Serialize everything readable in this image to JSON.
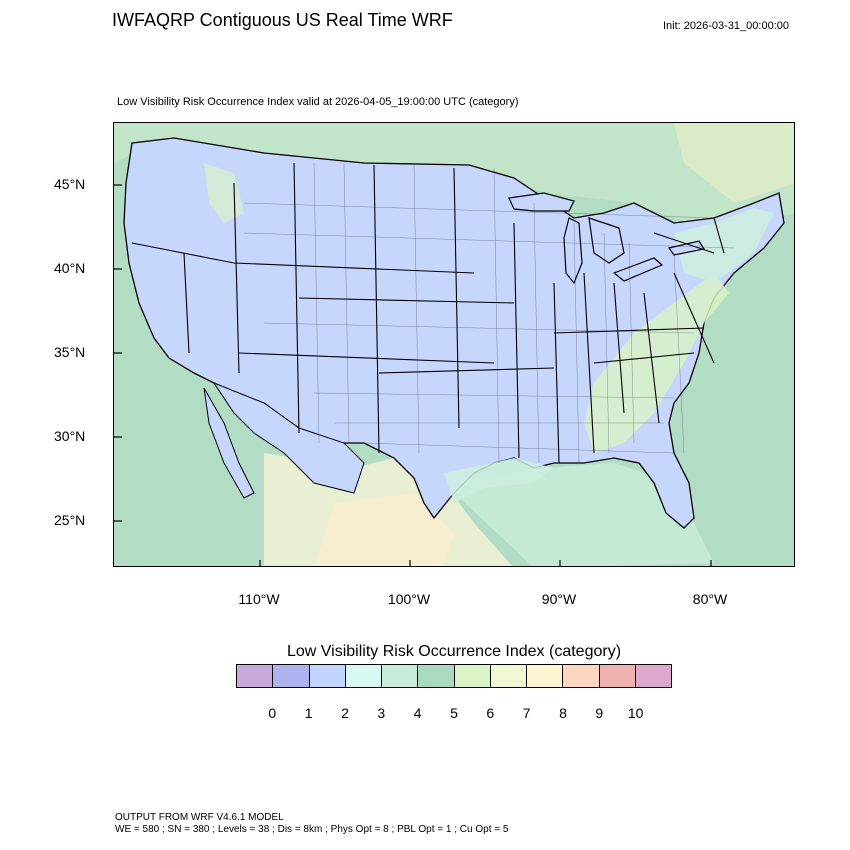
{
  "header": {
    "title": "IWFAQRP Contiguous US Real Time WRF",
    "init": "Init: 2026-03-31_00:00:00",
    "subtitle": "Low Visibility Risk Occurrence Index valid at 2026-04-05_19:00:00 UTC   (category)"
  },
  "map": {
    "latitude_labels": [
      "45°N",
      "40°N",
      "35°N",
      "30°N",
      "25°N"
    ],
    "longitude_labels": [
      "110°W",
      "100°W",
      "90°W",
      "80°W"
    ],
    "colors": {
      "land_category_2": "#c6d6fd",
      "ocean_terrain": "#b3dcc5",
      "ocean_shelf": "#c4ead6",
      "terrain_high": "#e8efd2",
      "terrain_warm": "#f6eecf",
      "category_4": "#cceedd",
      "category_6": "#d8f2c8",
      "boundary": "#000000"
    }
  },
  "colorbar": {
    "title": "Low Visibility Risk Occurrence Index  (category)",
    "labels": [
      "0",
      "1",
      "2",
      "3",
      "4",
      "5",
      "6",
      "7",
      "8",
      "9",
      "10"
    ],
    "colors": [
      "#c9a8dc",
      "#aeb2ef",
      "#c2d4fe",
      "#d7f9f2",
      "#c7ecda",
      "#a9d9be",
      "#d9f2c6",
      "#f0f9d4",
      "#fff3d1",
      "#fdd5c1",
      "#efb3af",
      "#dca8cb"
    ]
  },
  "footer": {
    "line1": "OUTPUT FROM WRF V4.6.1 MODEL",
    "line2": "WE = 580 ; SN = 380 ; Levels = 38 ; Dis = 8km ; Phys Opt = 8 ; PBL Opt = 1 ; Cu Opt = 5"
  }
}
